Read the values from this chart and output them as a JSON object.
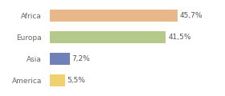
{
  "categories": [
    "Africa",
    "Europa",
    "Asia",
    "America"
  ],
  "values": [
    45.7,
    41.5,
    7.2,
    5.5
  ],
  "labels": [
    "45,7%",
    "41,5%",
    "7,2%",
    "5,5%"
  ],
  "bar_colors": [
    "#e8b88a",
    "#b5c98a",
    "#7080b8",
    "#f0d070"
  ],
  "background_color": "#ffffff",
  "xlim": [
    0,
    53
  ],
  "label_fontsize": 6.5,
  "tick_fontsize": 6.5,
  "bar_height": 0.55
}
